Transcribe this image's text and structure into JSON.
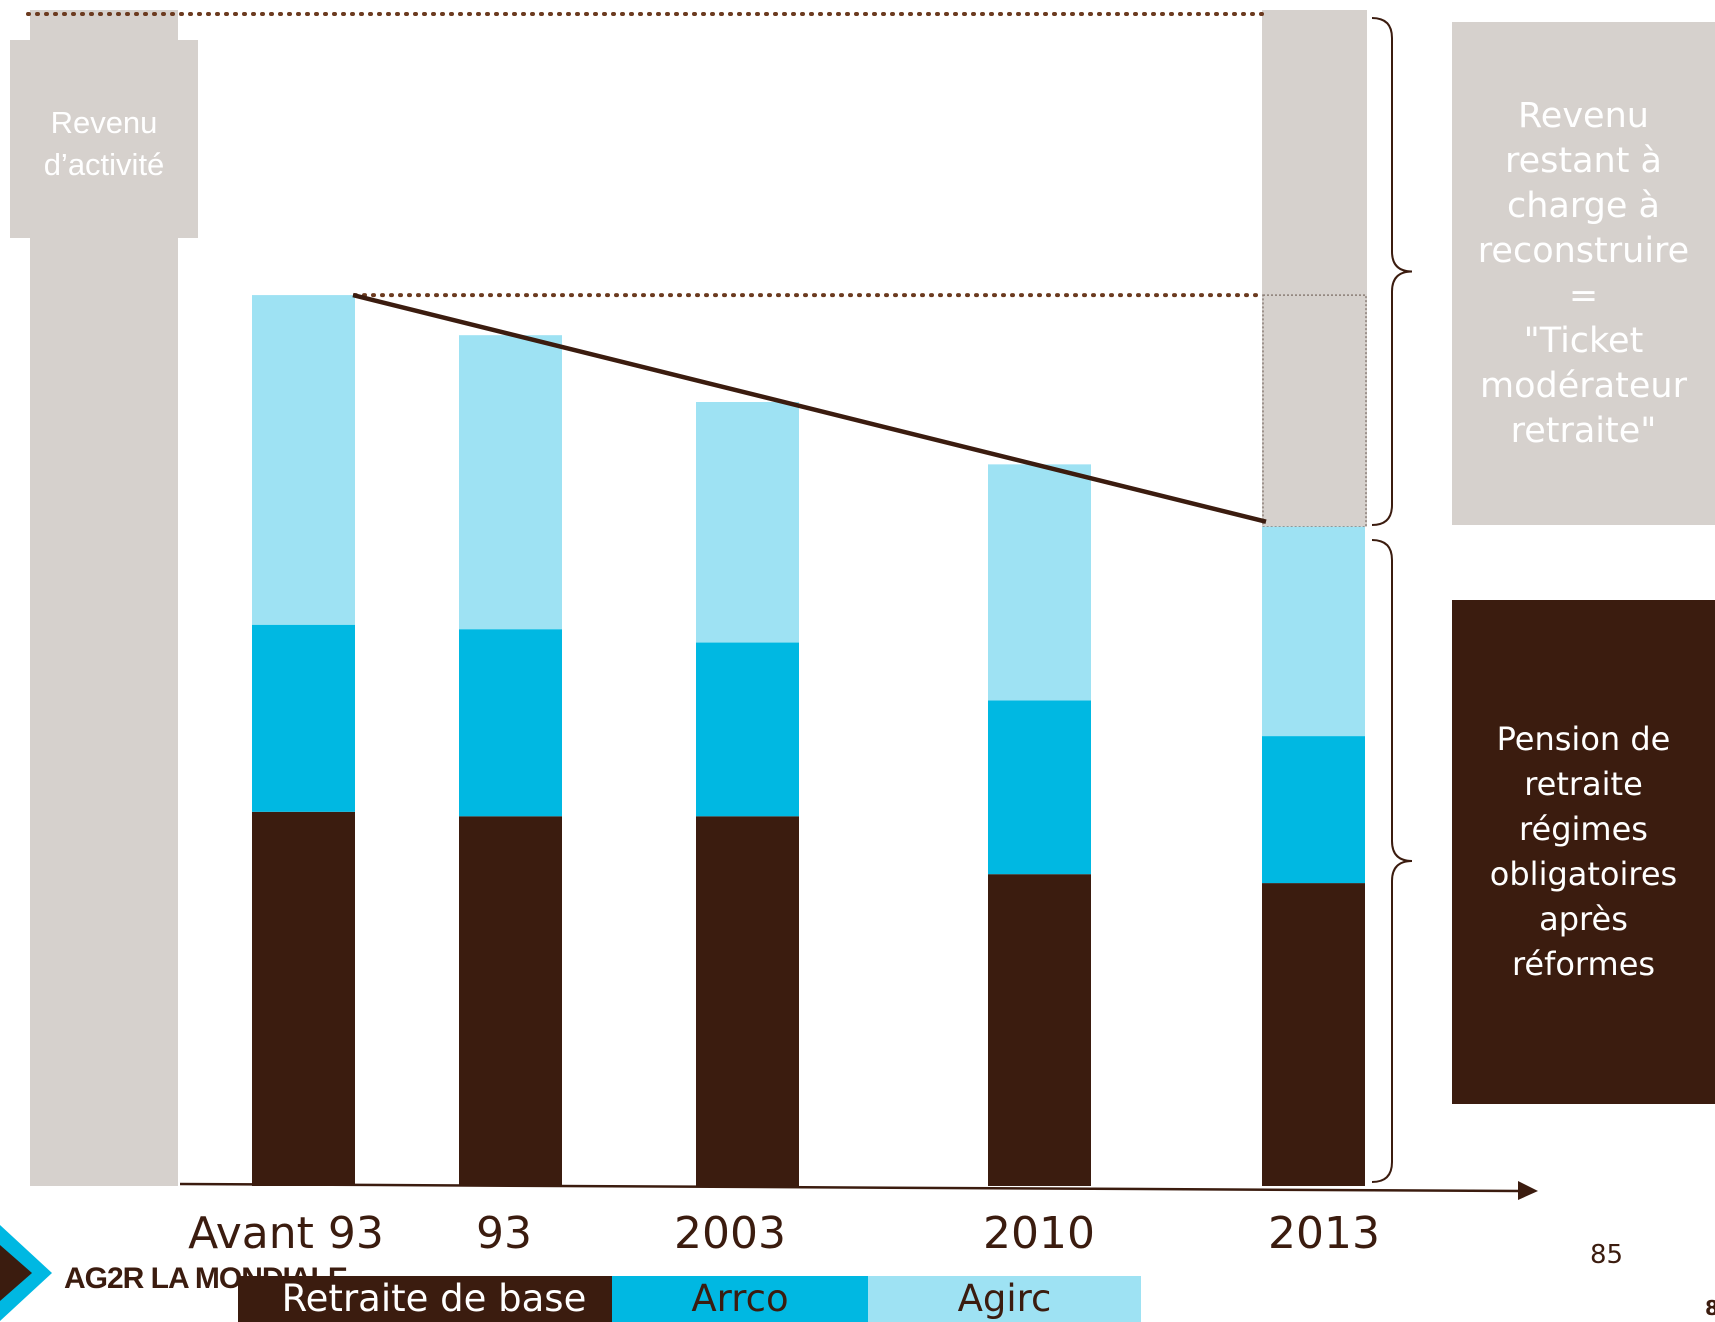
{
  "chart_data": {
    "type": "bar",
    "stacked": true,
    "categories": [
      "Avant 93",
      "93",
      "2003",
      "2010",
      "2013"
    ],
    "series": [
      {
        "name": "Retraite de base",
        "color": "#3b1c0f",
        "values": [
          42,
          41.5,
          41.5,
          35,
          34
        ]
      },
      {
        "name": "Arrco",
        "color": "#00b8e2",
        "values": [
          21,
          21,
          19.5,
          19.5,
          16.5
        ]
      },
      {
        "name": "Agirc",
        "color": "#9ee2f3",
        "values": [
          37,
          33,
          27,
          26.5,
          23.5
        ]
      }
    ],
    "revenu_activite": 132,
    "revenu_activite_label": "Revenu\nd’activité",
    "remaining_box_label": "Revenu\nrestant à\ncharge à\nreconstruire\n=\n\"Ticket\nmodérateur\nretraite\"",
    "pension_box_label": "Pension de\nretraite\nrégimes\nobligatoires\naprès\nréformes",
    "ylim": [
      0,
      132
    ],
    "grid": false,
    "legend_position": "bottom",
    "colors": {
      "activity": "#d6d1cd",
      "trend": "#3b1c0f",
      "dots": "#6b3a1f"
    }
  },
  "logo_text": "AG2R LA MONDIALE",
  "page_number": "85",
  "corner_digit": "8"
}
